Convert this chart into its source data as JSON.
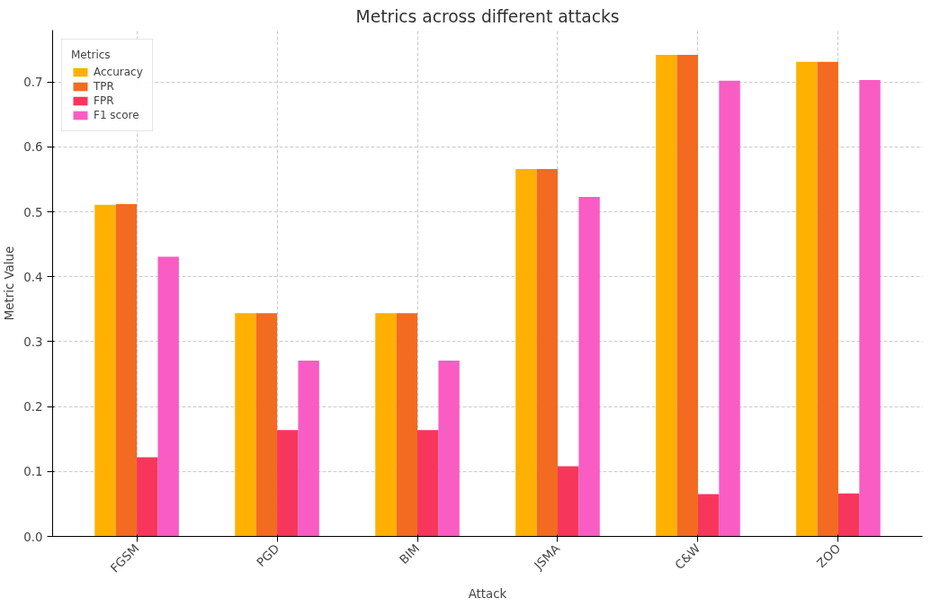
{
  "chart_data": {
    "type": "bar",
    "title": "Metrics across different attacks",
    "xlabel": "Attack",
    "ylabel": "Metric Value",
    "legend_title": "Metrics",
    "legend": "top left",
    "grid": true,
    "categories": [
      "FGSM",
      "PGD",
      "BIM",
      "JSMA",
      "C&W",
      "ZOO"
    ],
    "ylim": [
      0,
      0.78
    ],
    "yticks": [
      {
        "value": 0,
        "label": "0.0"
      },
      0.1,
      0.2,
      0.3,
      0.4,
      0.5,
      0.6,
      0.7
    ],
    "series": [
      {
        "name": "Accuracy",
        "color": "#ffb000",
        "values": [
          0.511,
          0.344,
          0.344,
          0.566,
          0.742,
          0.731
        ]
      },
      {
        "name": "TPR",
        "color": "#f26b21",
        "values": [
          0.512,
          0.344,
          0.344,
          0.566,
          0.742,
          0.731
        ]
      },
      {
        "name": "FPR",
        "color": "#f7365c",
        "values": [
          0.122,
          0.164,
          0.164,
          0.108,
          0.065,
          0.066
        ]
      },
      {
        "name": "F1 score",
        "color": "#f95cc3",
        "values": [
          0.431,
          0.271,
          0.271,
          0.523,
          0.702,
          0.703
        ]
      }
    ]
  }
}
